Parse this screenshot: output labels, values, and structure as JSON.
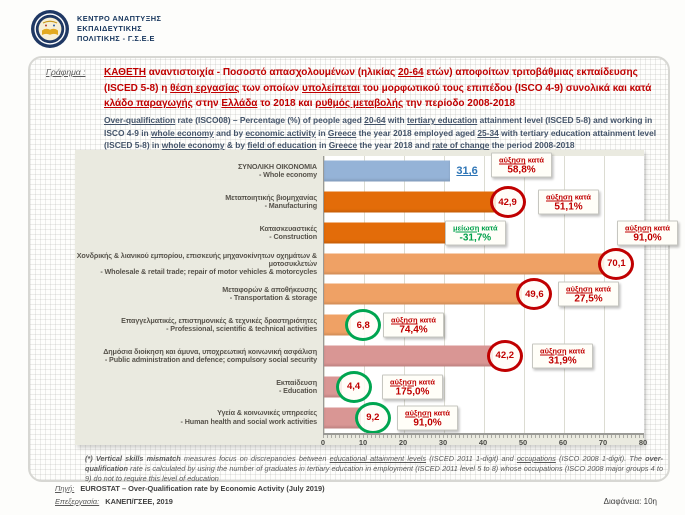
{
  "header": {
    "logo_lines": [
      "ΚΕΝΤΡΟ ΑΝΑΠΤΥΞΗΣ",
      "ΕΚΠΑΙΔΕΥΤΙΚΗΣ",
      "ΠΟΛΙΤΙΚΗΣ - Γ.Σ.Ε.Ε"
    ]
  },
  "title": {
    "grafima_label": "Γράφημα :",
    "greek_segments": [
      {
        "t": "ΚΑΘΕΤΗ",
        "c": "b u"
      },
      {
        "t": " αναντιστοιχία",
        "c": "b"
      },
      {
        "t": " - Ποσοστό "
      },
      {
        "t": "απασχολουμένων",
        "c": "b"
      },
      {
        "t": " (ηλικίας "
      },
      {
        "t": "20-64",
        "c": "b u"
      },
      {
        "t": " ετών) αποφοίτων "
      },
      {
        "t": "τριτοβάθμιας εκπαίδευσης",
        "c": "b"
      },
      {
        "t": " (ISCED 5-8) η "
      },
      {
        "t": "θέση εργασίας",
        "c": "u"
      },
      {
        "t": " των οποίων "
      },
      {
        "t": "υπολείπεται",
        "c": "b u"
      },
      {
        "t": " του "
      },
      {
        "t": "μορφωτικού τους  επιπέδου",
        "c": "b"
      },
      {
        "t": " (ISCO 4-9) συνολικά και κατά "
      },
      {
        "t": "κλάδο παραγωγής",
        "c": "b u"
      },
      {
        "t": " στην "
      },
      {
        "t": "Ελλάδα",
        "c": "u"
      },
      {
        "t": "  το "
      },
      {
        "t": "2018",
        "c": "b"
      },
      {
        "t": "  και "
      },
      {
        "t": "ρυθμός μεταβολής",
        "c": "u"
      },
      {
        "t": " την περίοδο "
      },
      {
        "t": "2008-2018",
        "c": "b"
      }
    ],
    "english_segments": [
      {
        "t": "Over-qualification",
        "c": "u"
      },
      {
        "t": " rate (ISCO08) – Percentage (%) of people aged "
      },
      {
        "t": "20-64",
        "c": "u"
      },
      {
        "t": " with "
      },
      {
        "t": "tertiary education",
        "c": "u"
      },
      {
        "t": " attainment level (ISCED 5-8) and working in ISCO 4-9 in "
      },
      {
        "t": "whole economy",
        "c": "u"
      },
      {
        "t": " and by "
      },
      {
        "t": "economic activity",
        "c": "u"
      },
      {
        "t": " in "
      },
      {
        "t": "Greece",
        "c": "u"
      },
      {
        "t": "  the year 2018 employed aged "
      },
      {
        "t": "25-34",
        "c": "u"
      },
      {
        "t": " with tertiary education attainment level (ISCED 5-8) in "
      },
      {
        "t": "whole economy",
        "c": "u"
      },
      {
        "t": " & by "
      },
      {
        "t": "field of education",
        "c": "u"
      },
      {
        "t": " in "
      },
      {
        "t": "Greece",
        "c": "u"
      },
      {
        "t": "  the year 2018  and "
      },
      {
        "t": "rate of change",
        "c": "u"
      },
      {
        "t": " the period 2008-2018"
      }
    ]
  },
  "chart_data": {
    "type": "bar",
    "orientation": "horizontal",
    "xlabel": "",
    "ylabel": "",
    "xlim": [
      0,
      80
    ],
    "xticks": [
      "0",
      "10",
      "20",
      "30",
      "40",
      "50",
      "60",
      "70",
      "80"
    ],
    "grid": true,
    "rows": [
      {
        "label_el": "ΣΥΝΟΛΙΚΗ ΟΙΚΟΝΟΜΙΑ",
        "label_en": "- Whole economy",
        "value": 31.6,
        "value_label": "31,6",
        "color": "#95b3d7",
        "marker": "value-blue",
        "note": {
          "dir": "αύξηση",
          "kata": " κατά",
          "pct": "58,8%",
          "trend": "up"
        }
      },
      {
        "label_el": "Μεταποιητικής βιομηχανίας",
        "label_en": "- Manufacturing",
        "value": 42.9,
        "value_label": "42,9",
        "color": "#e36c09",
        "marker": "circle-red",
        "note": {
          "dir": "αύξηση",
          "kata": " κατά",
          "pct": "51,1%",
          "trend": "up"
        }
      },
      {
        "label_el": "Κατασκευαστικές",
        "label_en": "- Construction",
        "value": 32.3,
        "value_label": "32,3",
        "color": "#e36c09",
        "marker": "value-red",
        "note": {
          "dir": "μείωση",
          "kata": " κατά",
          "pct": "-31,7%",
          "trend": "down"
        }
      },
      {
        "label_el": "Χονδρικής & λιανικού εμπορίου, επισκευής μηχανοκίνητων οχημάτων & μοτοσυκλετών",
        "label_en": "- Wholesale & retail trade; repair of motor vehicles & motorcycles",
        "value": 70.1,
        "value_label": "70,1",
        "color": "#efa165",
        "marker": "circle-red",
        "note": {
          "dir": "αύξηση",
          "kata": " κατά",
          "pct": "91,0%",
          "trend": "up"
        }
      },
      {
        "label_el": "Μεταφορών & αποθήκευσης",
        "label_en": "- Transportation & storage",
        "value": 49.6,
        "value_label": "49,6",
        "color": "#efa165",
        "marker": "circle-red",
        "note": {
          "dir": "αύξηση",
          "kata": " κατά",
          "pct": "27,5%",
          "trend": "up"
        }
      },
      {
        "label_el": "Επαγγελματικές, επιστημονικές & τεχνικές δραστηριότητες",
        "label_en": "- Professional, scientific & technical activities",
        "value": 6.8,
        "value_label": "6,8",
        "color": "#efa165",
        "marker": "circle-green",
        "note": {
          "dir": "αύξηση",
          "kata": " κατά",
          "pct": "74,4%",
          "trend": "up"
        }
      },
      {
        "label_el": "Δημόσια διοίκηση και άμυνα, υποχρεωτική κοινωνική ασφάλιση",
        "label_en": "- Public administration and defence; compulsory social security",
        "value": 42.2,
        "value_label": "42,2",
        "color": "#d99694",
        "marker": "circle-red",
        "note": {
          "dir": "αύξηση",
          "kata": " κατά",
          "pct": "31,9%",
          "trend": "up"
        }
      },
      {
        "label_el": "Εκπαίδευση",
        "label_en": "- Education",
        "value": 4.4,
        "value_label": "4,4",
        "color": "#d99694",
        "marker": "circle-green",
        "note": {
          "dir": "αύξηση",
          "kata": " κατά",
          "pct": "175,0%",
          "trend": "up"
        }
      },
      {
        "label_el": "Υγεία & κοινωνικές  υπηρεσίες",
        "label_en": "- Human health and social work activities",
        "value": 9.2,
        "value_label": "9,2",
        "color": "#d99694",
        "marker": "circle-green",
        "note": {
          "dir": "αύξηση",
          "kata": " κατά",
          "pct": "91,0%",
          "trend": "up"
        }
      }
    ],
    "colors": {
      "whole_economy_bar": "#95b3d7",
      "secondary_sector_bar": "#e36c09",
      "tertiary_trade_bar": "#efa165",
      "public_services_bar": "#d99694",
      "increase_accent": "#c00000",
      "decrease_accent": "#00a14b",
      "value_blue": "#2e75b6"
    }
  },
  "footnote_segments": [
    {
      "t": "(*) ",
      "c": "b"
    },
    {
      "t": "Vertical skills mismatch",
      "c": "b"
    },
    {
      "t": " measures focus on discrepancies between "
    },
    {
      "t": "educational attainment levels",
      "c": "u"
    },
    {
      "t": " (ISCED  2011 1-digit) and "
    },
    {
      "t": "occupations",
      "c": "u"
    },
    {
      "t": " (ISCO 2008 1-digit). The "
    },
    {
      "t": "over-qualification",
      "c": "b"
    },
    {
      "t": " rate is calculated by using the number of graduates in tertiary education in employment (ISCED 2011 level 5 to 8) whose occupations (ISCO 2008 major groups 4 to 9) do not to require this level of education"
    }
  ],
  "sources": {
    "source_label": "Πηγή:",
    "source_value": "EUROSTAT – Over-Qualification rate by Economic Activity (July 2019)",
    "processing_label": "Επεξεργασία:",
    "processing_value": "ΚΑΝΕΠ/ΓΣΕΕ, 2019"
  },
  "slide": {
    "label": "Διαφάνεια:",
    "number": "10η"
  }
}
